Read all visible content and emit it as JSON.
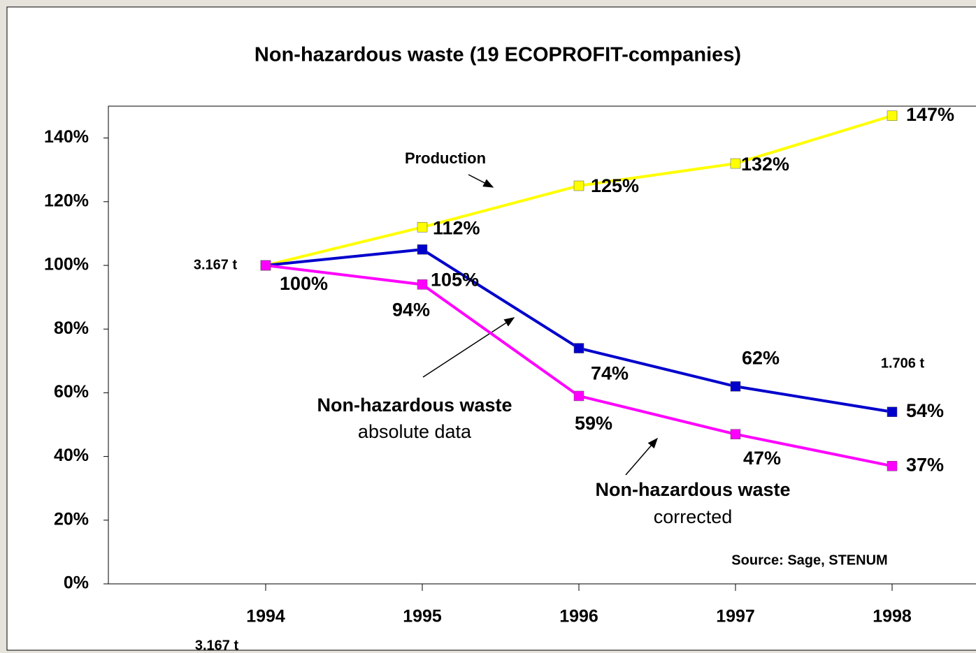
{
  "chart_data": {
    "type": "line",
    "title": "Non-hazardous waste (19 ECOPROFIT-companies)",
    "categories": [
      "1994",
      "1995",
      "1996",
      "1997",
      "1998"
    ],
    "series": [
      {
        "name": "Production",
        "color": "#ffff00",
        "values": [
          100,
          112,
          125,
          132,
          147
        ],
        "value_labels": [
          null,
          "112%",
          "125%",
          "132%",
          "147%"
        ]
      },
      {
        "name": "Non-hazardous waste absolute data",
        "color": "#0000cc",
        "values": [
          100,
          105,
          74,
          62,
          54
        ],
        "value_labels": [
          "100%",
          "105%",
          "74%",
          "62%",
          "54%"
        ]
      },
      {
        "name": "Non-hazardous waste corrected",
        "color": "#ff00ff",
        "values": [
          100,
          94,
          59,
          47,
          37
        ],
        "value_labels": [
          null,
          "94%",
          "59%",
          "47%",
          "37%"
        ]
      }
    ],
    "ylim": [
      0,
      150
    ],
    "yticks": [
      {
        "value": 0,
        "label": "0%"
      },
      {
        "value": 20,
        "label": "20%"
      },
      {
        "value": 40,
        "label": "40%"
      },
      {
        "value": 60,
        "label": "60%"
      },
      {
        "value": 80,
        "label": "80%"
      },
      {
        "value": 100,
        "label": "100%"
      },
      {
        "value": 120,
        "label": "120%"
      },
      {
        "value": 140,
        "label": "140%"
      }
    ],
    "annotations": {
      "production": "Production",
      "absolute_title": "Non-hazardous waste",
      "absolute_sub": "absolute data",
      "corrected_title": "Non-hazardous waste",
      "corrected_sub": "corrected",
      "start_amount": "3.167 t",
      "start_amount_bottom": "3.167 t",
      "end_amount": "1.706 t",
      "source": "Source: Sage, STENUM"
    }
  }
}
